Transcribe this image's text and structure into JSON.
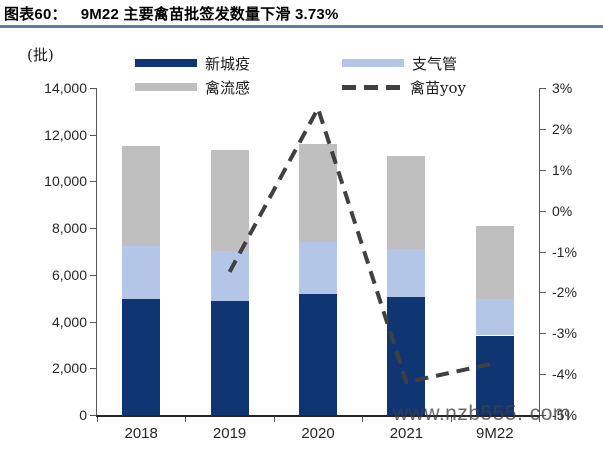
{
  "figure": {
    "label": "图表60：",
    "title": "9M22 主要禽苗批签发数量下滑 3.73%"
  },
  "watermark": {
    "text": "www.nzb555. com"
  },
  "colors": {
    "rule": "#5E7EA1",
    "axis": "#595959",
    "axis_bottom": "#262626",
    "newcastle_navy": "#103573",
    "bronchitis_lightblue": "#B3C6E7",
    "flu_gray": "#BFBFBF",
    "yoy_line": "#404040"
  },
  "chart_data": {
    "type": "bar",
    "subtype": "stacked-bars-with-line",
    "title": "9M22 主要禽苗批签发数量下滑 3.73%",
    "categories": [
      "2018",
      "2019",
      "2020",
      "2021",
      "9M22"
    ],
    "series": [
      {
        "name": "新城疫",
        "color": "#103573",
        "values": [
          4950,
          4880,
          5170,
          5040,
          3400
        ]
      },
      {
        "name": "支气管",
        "color": "#B3C6E7",
        "values": [
          2280,
          2140,
          2230,
          2060,
          1560
        ]
      },
      {
        "name": "禽流感",
        "color": "#BFBFBF",
        "values": [
          4270,
          4330,
          4200,
          3990,
          3150
        ]
      }
    ],
    "stack_totals": [
      11500,
      11350,
      11600,
      11090,
      8110
    ],
    "line_series": {
      "name": "禽苗yoy",
      "color": "#404040",
      "style": "dashed",
      "axis": "right",
      "unit": "%",
      "values": [
        null,
        -1.5,
        2.5,
        -4.2,
        -3.73
      ]
    },
    "left_axis": {
      "unit_label": "(批)",
      "min": 0,
      "max": 14000,
      "tick_step": 2000,
      "ticks_top_to_bottom": [
        "14,000",
        "12,000",
        "10,000",
        "8,000",
        "6,000",
        "4,000",
        "2,000",
        "0"
      ]
    },
    "right_axis": {
      "min": -5,
      "max": 3,
      "tick_step": 1,
      "ticks_top_to_bottom": [
        "3%",
        "2%",
        "1%",
        "0%",
        "-1%",
        "-2%",
        "-3%",
        "-4%",
        "-5%"
      ]
    },
    "legend_position": "top",
    "grid": false
  }
}
